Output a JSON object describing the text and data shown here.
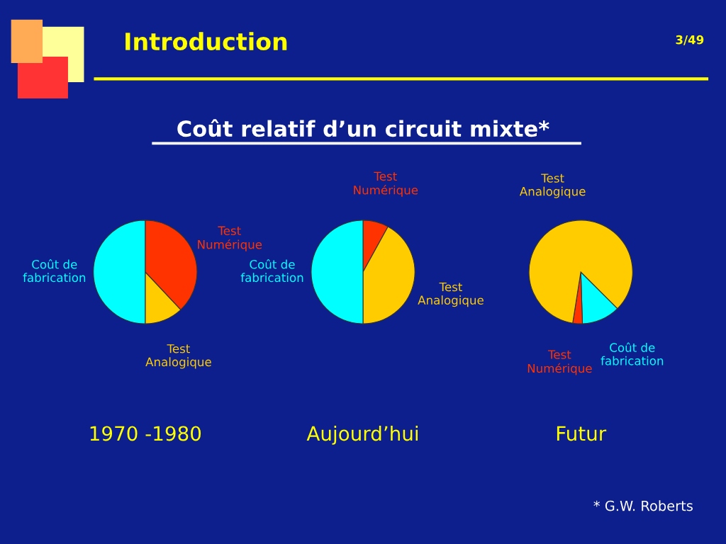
{
  "chart_data": [
    {
      "type": "other",
      "title": "Coût relatif d’un circuit mixte*",
      "annotations": [
        "Introduction",
        "3/49",
        "* G.W. Roberts"
      ]
    },
    {
      "type": "pie",
      "title": "1970 -1980",
      "categories": [
        "Test\nNumérique",
        "Test\nAnalogique",
        "Coût de\nfabrication"
      ],
      "values": [
        38,
        12,
        50
      ],
      "colors": [
        "#ff3300",
        "#ffcc00",
        "#00ffff"
      ]
    },
    {
      "type": "pie",
      "title": "Aujourd’hui",
      "categories": [
        "Test\nNumérique",
        "Test\nAnalogique",
        "Coût de\nfabrication"
      ],
      "values": [
        8,
        42,
        50
      ],
      "colors": [
        "#ff3300",
        "#ffcc00",
        "#00ffff"
      ]
    },
    {
      "type": "pie",
      "title": "Futur",
      "categories": [
        "Coût de\nfabrication",
        "Test\nNumérique",
        "Test\nAnalogique"
      ],
      "values": [
        12,
        3,
        85
      ],
      "colors": [
        "#00ffff",
        "#ff3300",
        "#ffcc00"
      ]
    }
  ]
}
